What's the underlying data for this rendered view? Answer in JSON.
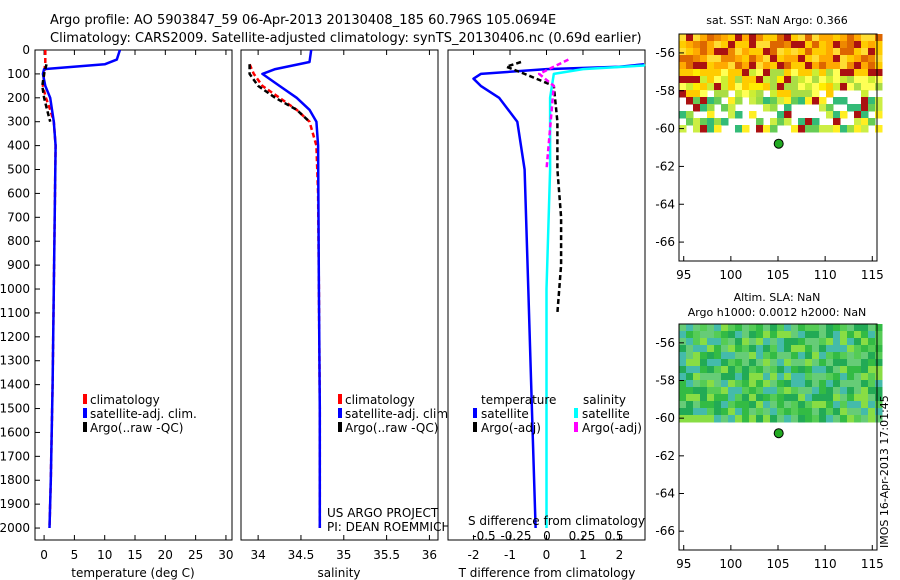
{
  "header": {
    "line1": "Argo profile: AO 5903847_59 06-Apr-2013 20130408_185 60.796S 105.0694E",
    "line2": "Climatology: CARS2009. Satellite-adjusted climatology: synTS_20130406.nc (0.69d earlier)"
  },
  "colors": {
    "climatology": "#ff0000",
    "satellite": "#0000ff",
    "argo": "#000000",
    "sal_satellite": "#00ffff",
    "sal_argo": "#ff00ff"
  },
  "chart_data": [
    {
      "type": "line",
      "xlabel": "temperature (deg C)",
      "ylabel": "",
      "xlim": [
        -1.5,
        31
      ],
      "ylim": [
        2050,
        0
      ],
      "xticks": [
        0,
        5,
        10,
        15,
        20,
        25,
        30
      ],
      "yticks": [
        0,
        100,
        200,
        300,
        400,
        500,
        600,
        700,
        800,
        900,
        1000,
        1100,
        1200,
        1300,
        1400,
        1500,
        1600,
        1700,
        1800,
        1900,
        2000
      ],
      "legend": [
        "climatology",
        "satellite-adj. clim.",
        "Argo(..raw -QC)"
      ],
      "series": [
        {
          "name": "climatology",
          "style": "dash",
          "color": "#ff0000",
          "x": [
            0.2,
            0.2,
            0.0,
            -0.2,
            0.3,
            1.0,
            1.6,
            1.9,
            1.8,
            1.6,
            1.4,
            1.1,
            0.9
          ],
          "y": [
            0,
            50,
            100,
            150,
            200,
            250,
            300,
            400,
            600,
            1000,
            1400,
            1800,
            2000
          ]
        },
        {
          "name": "satellite-adj. clim.",
          "style": "solid",
          "color": "#0000ff",
          "x": [
            12.5,
            12.0,
            10.0,
            0.0,
            -0.2,
            0.2,
            1.0,
            1.6,
            1.9,
            1.8,
            1.6,
            1.4,
            1.1,
            0.9
          ],
          "y": [
            0,
            40,
            60,
            80,
            100,
            150,
            200,
            300,
            400,
            600,
            1000,
            1400,
            1800,
            2000
          ]
        },
        {
          "name": "Argo(..raw -QC)",
          "style": "dash",
          "color": "#000000",
          "x": [
            0.4,
            0.0,
            -0.3,
            0.0,
            0.5,
            1.0
          ],
          "y": [
            60,
            100,
            150,
            200,
            250,
            300
          ]
        }
      ]
    },
    {
      "type": "line",
      "xlabel": "salinity",
      "ylabel": "",
      "xlim": [
        33.8,
        36.1
      ],
      "ylim": [
        2050,
        0
      ],
      "xticks": [
        34,
        34.5,
        35,
        35.5,
        36
      ],
      "xticklabels": [
        "34",
        "34.5",
        "35",
        "35.5",
        "36"
      ],
      "legend": [
        "climatology",
        "satellite-adj. clim.",
        "Argo(..raw -QC)"
      ],
      "annotation": [
        "US ARGO PROJECT",
        "PI: DEAN ROEMMICH"
      ],
      "series": [
        {
          "name": "climatology",
          "style": "dash",
          "color": "#ff0000",
          "x": [
            33.9,
            33.95,
            34.05,
            34.25,
            34.45,
            34.6,
            34.68,
            34.7,
            34.71,
            34.72,
            34.72
          ],
          "y": [
            60,
            100,
            150,
            200,
            250,
            300,
            400,
            600,
            1000,
            1500,
            2000
          ]
        },
        {
          "name": "satellite-adj. clim.",
          "style": "solid",
          "color": "#0000ff",
          "x": [
            34.62,
            34.6,
            34.2,
            34.05,
            34.25,
            34.45,
            34.6,
            34.68,
            34.7,
            34.71,
            34.72,
            34.72
          ],
          "y": [
            0,
            50,
            80,
            100,
            150,
            200,
            250,
            300,
            400,
            1000,
            1500,
            2000
          ]
        },
        {
          "name": "Argo(..raw -QC)",
          "style": "dash",
          "color": "#000000",
          "x": [
            33.9,
            33.9,
            34.0,
            34.2,
            34.45,
            34.6
          ],
          "y": [
            60,
            100,
            150,
            200,
            250,
            300
          ]
        }
      ]
    },
    {
      "type": "line",
      "xlabel": "T difference from climatology",
      "ylabel": "",
      "xlim": [
        -2.7,
        2.7
      ],
      "ylim": [
        2050,
        0
      ],
      "xticks": [
        -2,
        -1,
        0,
        1,
        2
      ],
      "top_axis_label": "S difference from climatology",
      "top_ticks": [
        "-0.5",
        "-0.25",
        "0",
        "0.25",
        "0.5"
      ],
      "legend_titles": [
        "temperature",
        "salinity"
      ],
      "legend": [
        "satellite",
        "Argo(-adj)",
        "satellite",
        "Argo(-adj)"
      ],
      "series": [
        {
          "name": "satellite",
          "style": "solid",
          "color": "#0000ff",
          "x": [
            12,
            2.0,
            0.0,
            -1.8,
            -2.0,
            -1.8,
            -1.3,
            -0.8,
            -0.6,
            -0.5,
            -0.4,
            -0.3
          ],
          "y": [
            60,
            70,
            80,
            100,
            120,
            150,
            200,
            300,
            500,
            1000,
            1500,
            2000
          ]
        },
        {
          "name": "Argo(-adj)",
          "style": "dash",
          "color": "#000000",
          "x": [
            -0.7,
            -1.1,
            -0.6,
            0.2,
            0.3,
            0.3,
            0.4,
            0.4,
            0.3
          ],
          "y": [
            50,
            70,
            100,
            150,
            300,
            500,
            700,
            900,
            1100
          ]
        },
        {
          "name": "satellite",
          "style": "solid",
          "color": "#00ffff",
          "x": [
            12,
            3.0,
            1.0,
            0.2,
            0.1,
            0.1,
            0.0,
            0.0
          ],
          "y": [
            60,
            65,
            80,
            100,
            200,
            500,
            1000,
            2000
          ]
        },
        {
          "name": "Argo(-adj)",
          "style": "dash",
          "color": "#ff00ff",
          "x": [
            0.6,
            0.2,
            -0.2,
            0.2,
            0.0
          ],
          "y": [
            40,
            70,
            100,
            150,
            500
          ]
        }
      ]
    },
    {
      "type": "heatmap",
      "title": "sat. SST: NaN Argo: 0.366",
      "xlim": [
        94.5,
        115.5
      ],
      "ylim": [
        -67,
        -55
      ],
      "xticks": [
        95,
        100,
        105,
        110,
        115
      ],
      "yticks": [
        -56,
        -58,
        -60,
        -62,
        -64,
        -66
      ],
      "field_lat_range": [
        -55,
        -60
      ],
      "marker": {
        "lon": 105.07,
        "lat": -60.8
      }
    },
    {
      "type": "heatmap",
      "title_lines": [
        "Altim. SLA: NaN",
        "Argo h1000: 0.0012 h2000: NaN"
      ],
      "xlim": [
        94.5,
        115.5
      ],
      "ylim": [
        -67,
        -55
      ],
      "xticks": [
        95,
        100,
        105,
        110,
        115
      ],
      "yticks": [
        -56,
        -58,
        -60,
        -62,
        -64,
        -66
      ],
      "field_lat_range": [
        -55,
        -60
      ],
      "marker": {
        "lon": 105.07,
        "lat": -60.8
      }
    }
  ],
  "footer_stamp": "IMOS 16-Apr-2013 17:01:45"
}
